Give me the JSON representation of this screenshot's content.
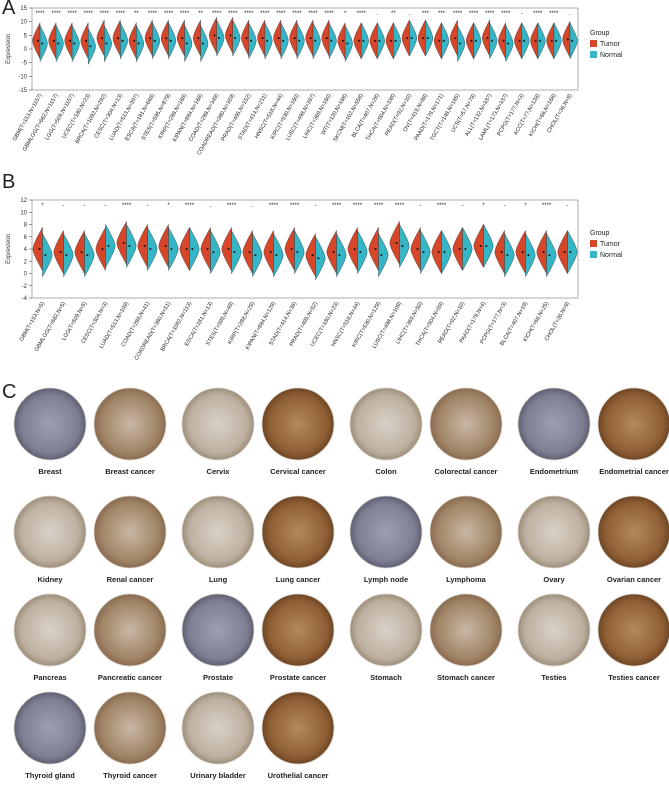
{
  "chart_data": [
    {
      "type": "violin",
      "panel_label": "A",
      "y_label": "Expression",
      "legend_title": "Group",
      "categories": [
        "GBM(T=153,N=1157)",
        "GBMLGG(T=662,N=1157)",
        "LGG(T=509,N=1157)",
        "UCEC(T=180,N=23)",
        "BRCA(T=1092,N=292)",
        "CESC(T=304,N=13)",
        "LUAD(T=513,N=397)",
        "ESCA(T=181,N=668)",
        "STES(T=595,N=879)",
        "KIRP(T=288,N=168)",
        "KIPAN(T=884,N=168)",
        "COAD(T=288,N=349)",
        "COADREAD(T=380,N=359)",
        "PRAD(T=495,N=152)",
        "STAD(T=414,N=211)",
        "HNSC(T=518,N=44)",
        "KIRC(T=530,N=160)",
        "LUSC(T=498,N=397)",
        "LIHC(T=369,N=160)",
        "WT(T=120,N=168)",
        "SKCM(T=102,N=558)",
        "BLCA(T=407,N=28)",
        "THCA(T=504,N=338)",
        "READ(T=92,N=10)",
        "OV(T=419,N=88)",
        "PAAD(T=178,N=171)",
        "TGCT(T=148,N=165)",
        "UCS(T=57,N=78)",
        "ALL(T=132,N=337)",
        "LAML(T=173,N=337)",
        "PCPG(T=177,N=3)",
        "ACC(T=77,N=128)",
        "KICH(T=66,N=168)",
        "CHOL(T=36,N=9)"
      ],
      "series": [
        {
          "name": "Tumor",
          "color": "#d8462a",
          "values": [
            3,
            3,
            3,
            3,
            4,
            4,
            3,
            4,
            4,
            4,
            4,
            5,
            5,
            4,
            4,
            4,
            4,
            4,
            4,
            3,
            3,
            3,
            3,
            4,
            4,
            3,
            4,
            3,
            4,
            3,
            3,
            3,
            3,
            3.5
          ]
        },
        {
          "name": "Normal",
          "color": "#35b6c6",
          "values": [
            2,
            2,
            2,
            1,
            2,
            3,
            2,
            3,
            3,
            2,
            2,
            4,
            4,
            3,
            3,
            3,
            3,
            3,
            3,
            2,
            3,
            3,
            3,
            4,
            4,
            3,
            2,
            3,
            3,
            2,
            3,
            3,
            3,
            3
          ]
        }
      ],
      "significance": [
        "****",
        "****",
        "****",
        "****",
        "****",
        "****",
        "**",
        "****",
        "****",
        "****",
        "**",
        "****",
        "****",
        "****",
        "****",
        "****",
        "****",
        "****",
        "****",
        "*",
        "****",
        ".",
        "**",
        ".",
        "***",
        "***",
        "****",
        "****",
        "****",
        "****",
        "-",
        "****",
        "****",
        "."
      ],
      "ylim": [
        -15,
        15
      ],
      "yticks": [
        -15,
        -10,
        -5,
        0,
        5,
        10,
        15
      ]
    },
    {
      "type": "violin",
      "panel_label": "B",
      "y_label": "Expression",
      "legend_title": "Group",
      "categories": [
        "GBM(T=153,N=5)",
        "GBMLGG(T=662,N=5)",
        "LGG(T=509,N=5)",
        "CESC(T=304,N=3)",
        "LUAD(T=513,N=109)",
        "COAD(T=288,N=41)",
        "COADREAD(T=380,N=51)",
        "BRCA(T=1092,N=113)",
        "ESCA(T=181,N=13)",
        "STES(T=595,N=49)",
        "KIRP(T=288,N=29)",
        "KIPAN(T=884,N=129)",
        "STAD(T=414,N=36)",
        "PRAD(T=495,N=52)",
        "UCEC(T=180,N=23)",
        "HNSC(T=518,N=44)",
        "KIRC(T=530,N=129)",
        "LUSC(T=498,N=109)",
        "LIHC(T=369,N=50)",
        "THCA(T=504,N=59)",
        "READ(T=92,N=10)",
        "PAAD(T=178,N=4)",
        "PCPG(T=177,N=3)",
        "BLCA(T=407,N=19)",
        "KICH(T=66,N=25)",
        "CHOL(T=36,N=9)"
      ],
      "series": [
        {
          "name": "Tumor",
          "color": "#d8462a",
          "values": [
            4,
            3.5,
            3.5,
            4,
            5,
            4.5,
            4.5,
            4,
            4,
            4,
            3.5,
            3.5,
            4,
            3,
            3.5,
            4,
            4,
            5,
            4,
            3.5,
            4,
            4.5,
            3.5,
            3.5,
            3.5,
            3.5
          ]
        },
        {
          "name": "Normal",
          "color": "#35b6c6",
          "values": [
            3,
            3,
            3,
            4.5,
            4.5,
            4,
            4,
            4,
            3.5,
            3.5,
            3,
            3,
            3.5,
            2.5,
            3,
            3.5,
            3,
            4.5,
            3.5,
            3.5,
            4,
            4.5,
            3,
            3,
            3,
            3.5
          ]
        }
      ],
      "significance": [
        "*",
        "-",
        "-",
        "-",
        "****",
        "-",
        "*",
        "****",
        ".",
        "****",
        ".",
        "****",
        "****",
        "-",
        "****",
        "****",
        "****",
        "****",
        "-",
        "****",
        "-",
        "*",
        "-",
        "*",
        "****",
        "-"
      ],
      "ylim": [
        -4,
        12
      ],
      "yticks": [
        -4,
        -2,
        0,
        2,
        4,
        6,
        8,
        10,
        12
      ]
    }
  ],
  "tissue_panel": {
    "panel_label": "C",
    "pairs": [
      {
        "normal": "Breast",
        "cancer": "Breast cancer"
      },
      {
        "normal": "Cervix",
        "cancer": "Cervical cancer"
      },
      {
        "normal": "Colon",
        "cancer": "Colorectal cancer"
      },
      {
        "normal": "Endometrium",
        "cancer": "Endometrial cancer"
      },
      {
        "normal": "Kidney",
        "cancer": "Renal cancer"
      },
      {
        "normal": "Lung",
        "cancer": "Lung cancer"
      },
      {
        "normal": "Lymph node",
        "cancer": "Lymphoma"
      },
      {
        "normal": "Ovary",
        "cancer": "Ovarian cancer"
      },
      {
        "normal": "Pancreas",
        "cancer": "Pancreatic cancer"
      },
      {
        "normal": "Prostate",
        "cancer": "Prostate cancer"
      },
      {
        "normal": "Stomach",
        "cancer": "Stomach cancer"
      },
      {
        "normal": "Testies",
        "cancer": "Testies cancer"
      },
      {
        "normal": "Thyroid gland",
        "cancer": "Thyroid cancer"
      },
      {
        "normal": "Urinary bladder",
        "cancer": "Urothelial cancer"
      }
    ]
  }
}
